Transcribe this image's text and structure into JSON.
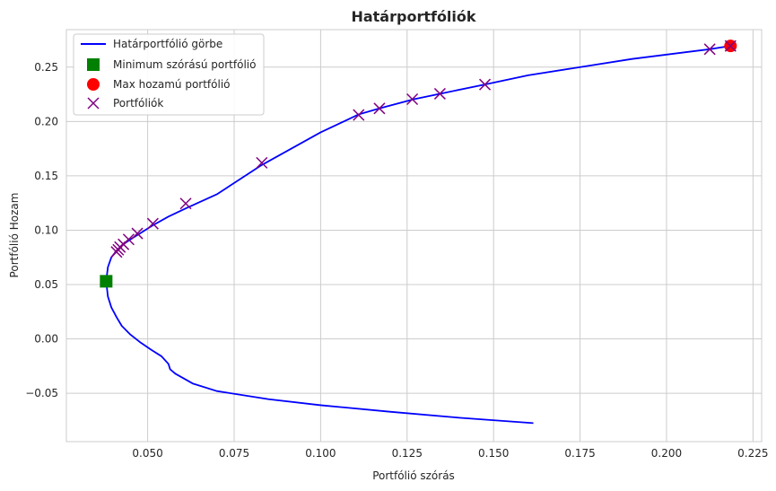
{
  "chart_data": {
    "type": "line",
    "title": "Határportfóliók",
    "xlabel": "Portfólió szórás",
    "ylabel": "Portfólió Hozam",
    "xlim": [
      0.0265,
      0.2275
    ],
    "ylim": [
      -0.0945,
      0.2845
    ],
    "xticks": [
      0.05,
      0.075,
      0.1,
      0.125,
      0.15,
      0.175,
      0.2,
      0.225
    ],
    "xtick_labels": [
      "0.050",
      "0.075",
      "0.100",
      "0.125",
      "0.150",
      "0.175",
      "0.200",
      "0.225"
    ],
    "yticks": [
      -0.05,
      0.0,
      0.05,
      0.1,
      0.15,
      0.2,
      0.25
    ],
    "ytick_labels": [
      "−0.05",
      "0.00",
      "0.05",
      "0.10",
      "0.15",
      "0.20",
      "0.25"
    ],
    "grid": true,
    "legend_position": "top-left",
    "colors": {
      "curve": "#0000ff",
      "min_var": "#008000",
      "max_ret": "#ff0000",
      "portfolios": "#800080",
      "grid": "#cccccc",
      "axes": "#cccccc"
    },
    "series": [
      {
        "name": "Határportfólió görbe",
        "kind": "line",
        "x": [
          0.1615,
          0.14,
          0.12,
          0.1,
          0.085,
          0.07,
          0.063,
          0.058,
          0.0565,
          0.056,
          0.054,
          0.051,
          0.048,
          0.045,
          0.0425,
          0.041,
          0.0395,
          0.0385,
          0.038,
          0.0385,
          0.0395,
          0.041,
          0.0425,
          0.045,
          0.048,
          0.0515,
          0.056,
          0.061,
          0.07,
          0.083,
          0.1,
          0.111,
          0.117,
          0.127,
          0.1345,
          0.1475,
          0.16,
          0.19,
          0.2125,
          0.2185
        ],
        "y": [
          -0.0775,
          -0.0725,
          -0.067,
          -0.061,
          -0.0555,
          -0.048,
          -0.041,
          -0.032,
          -0.028,
          -0.023,
          -0.016,
          -0.01,
          -0.0035,
          0.004,
          0.012,
          0.02,
          0.029,
          0.039,
          0.053,
          0.066,
          0.075,
          0.081,
          0.086,
          0.0915,
          0.0975,
          0.1045,
          0.1125,
          0.12,
          0.133,
          0.16,
          0.19,
          0.2065,
          0.212,
          0.2205,
          0.2255,
          0.234,
          0.2425,
          0.2575,
          0.2665,
          0.2695
        ]
      },
      {
        "name": "Minimum szórású portfólió",
        "kind": "square",
        "x": [
          0.038
        ],
        "y": [
          0.053
        ]
      },
      {
        "name": "Max hozamú portfólió",
        "kind": "circle",
        "x": [
          0.2185
        ],
        "y": [
          0.2695
        ]
      },
      {
        "name": "Portfóliók",
        "kind": "x",
        "x": [
          0.041,
          0.0415,
          0.042,
          0.043,
          0.0445,
          0.047,
          0.0515,
          0.061,
          0.083,
          0.111,
          0.117,
          0.1265,
          0.1345,
          0.1475,
          0.2125,
          0.2185
        ],
        "y": [
          0.08,
          0.082,
          0.0845,
          0.087,
          0.0915,
          0.097,
          0.106,
          0.1245,
          0.162,
          0.206,
          0.212,
          0.2205,
          0.2255,
          0.234,
          0.2665,
          0.2695
        ]
      }
    ]
  }
}
